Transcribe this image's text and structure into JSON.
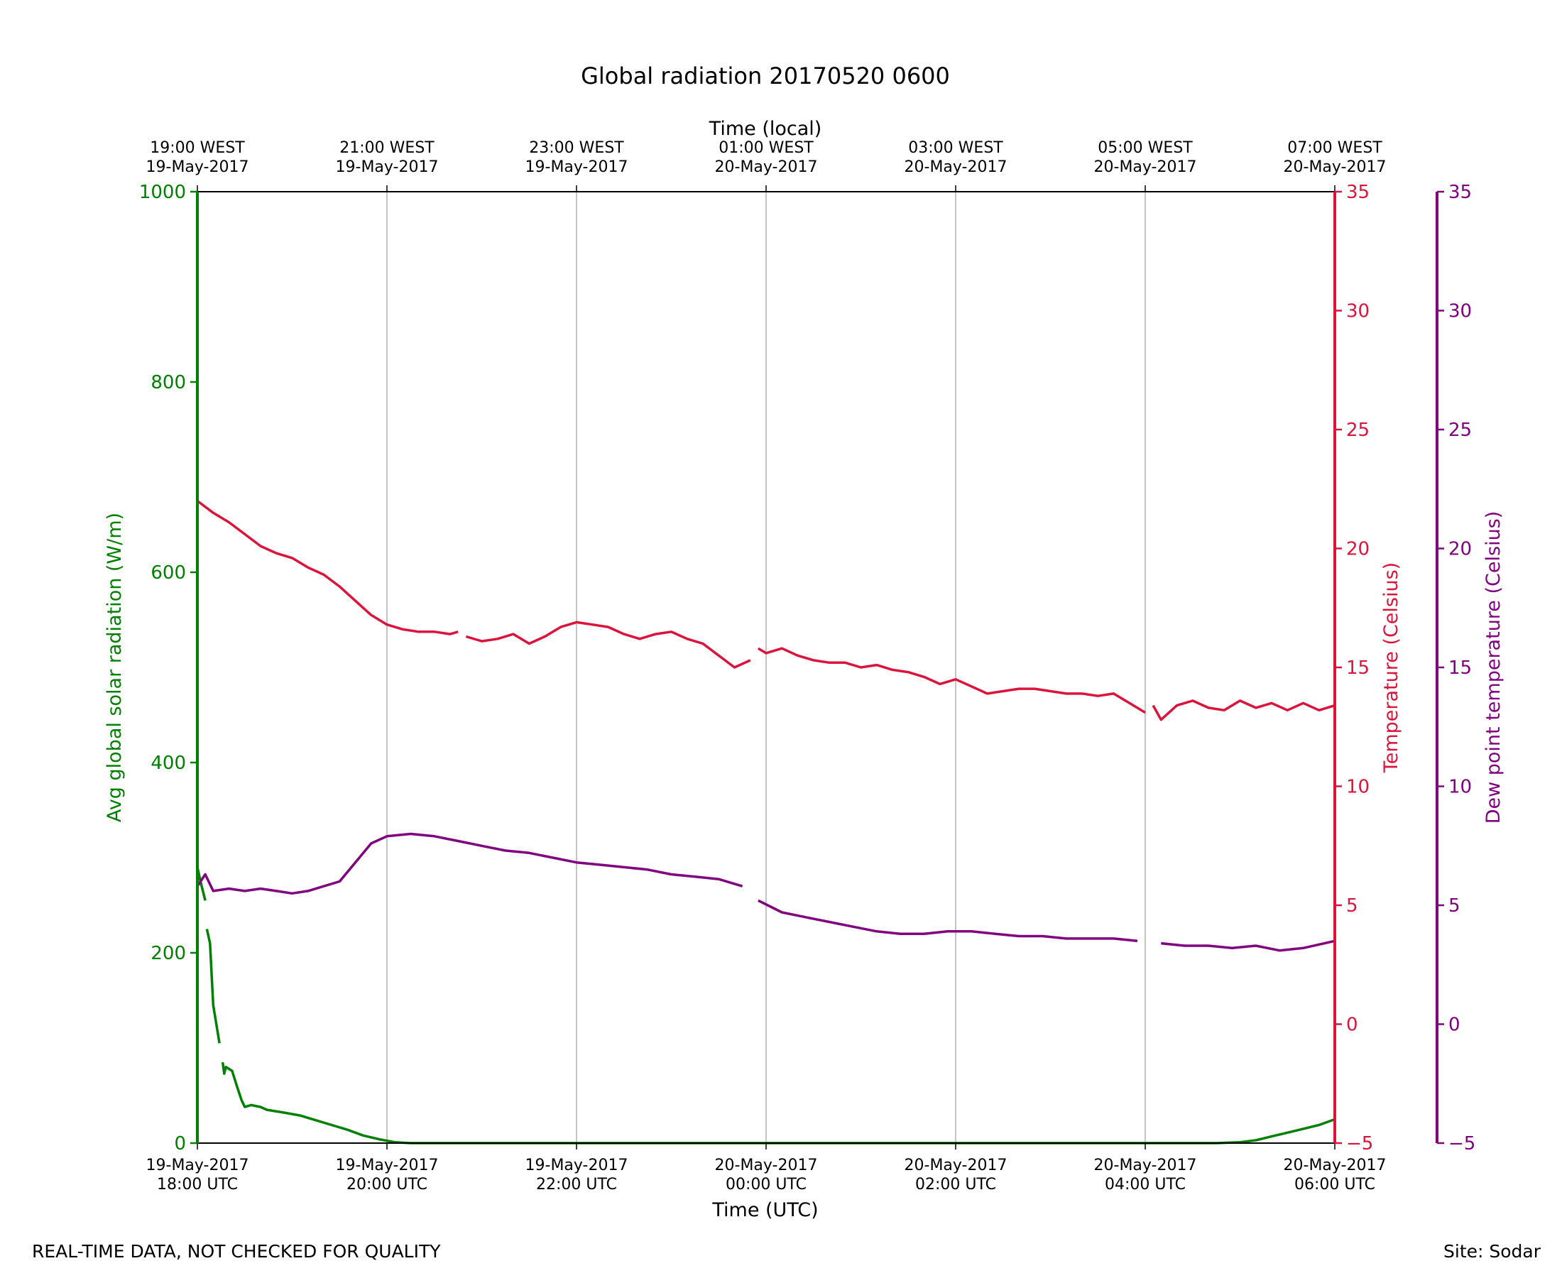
{
  "footer": {
    "note": "REAL-TIME DATA, NOT CHECKED FOR QUALITY",
    "site": "Site: Sodar"
  },
  "colors": {
    "radiation": "#008000",
    "temperature": "#DC143C",
    "dewpoint": "#800080",
    "grid": "#b0b0b0"
  },
  "chart_data": {
    "type": "line",
    "title": "Global radiation 20170520 0600",
    "xlabel": "Time (UTC)",
    "xlabel_top": "Time (local)",
    "grid": "vertical",
    "x_range": [
      "2017-05-19T18:00",
      "2017-05-20T06:00"
    ],
    "x_ticks": [
      {
        "t": "2017-05-19T18:00",
        "bottom": [
          "19-May-2017",
          "18:00 UTC"
        ],
        "top": [
          "19:00 WEST",
          "19-May-2017"
        ]
      },
      {
        "t": "2017-05-19T20:00",
        "bottom": [
          "19-May-2017",
          "20:00 UTC"
        ],
        "top": [
          "21:00 WEST",
          "19-May-2017"
        ]
      },
      {
        "t": "2017-05-19T22:00",
        "bottom": [
          "19-May-2017",
          "22:00 UTC"
        ],
        "top": [
          "23:00 WEST",
          "19-May-2017"
        ]
      },
      {
        "t": "2017-05-20T00:00",
        "bottom": [
          "20-May-2017",
          "00:00 UTC"
        ],
        "top": [
          "01:00 WEST",
          "20-May-2017"
        ]
      },
      {
        "t": "2017-05-20T02:00",
        "bottom": [
          "20-May-2017",
          "02:00 UTC"
        ],
        "top": [
          "03:00 WEST",
          "20-May-2017"
        ]
      },
      {
        "t": "2017-05-20T04:00",
        "bottom": [
          "20-May-2017",
          "04:00 UTC"
        ],
        "top": [
          "05:00 WEST",
          "20-May-2017"
        ]
      },
      {
        "t": "2017-05-20T06:00",
        "bottom": [
          "20-May-2017",
          "06:00 UTC"
        ],
        "top": [
          "07:00 WEST",
          "20-May-2017"
        ]
      }
    ],
    "axes": [
      {
        "id": "radiation",
        "label": "Avg global solar radiation (W/m)",
        "side": "left",
        "ylim": [
          0,
          1000
        ],
        "ticks": [
          0,
          200,
          400,
          600,
          800,
          1000
        ]
      },
      {
        "id": "temperature",
        "label": "Temperature (Celsius)",
        "side": "right",
        "ylim": [
          -5,
          35
        ],
        "ticks": [
          -5,
          0,
          5,
          10,
          15,
          20,
          25,
          30,
          35
        ]
      },
      {
        "id": "dewpoint",
        "label": "Dew point temperature (Celsius)",
        "side": "right-outer",
        "ylim": [
          -5,
          35
        ],
        "ticks": [
          -5,
          0,
          5,
          10,
          15,
          20,
          25,
          30,
          35
        ]
      }
    ],
    "series": [
      {
        "axis": "radiation",
        "style": "solid with gaps",
        "points": [
          [
            "2017-05-19T18:00",
            1000
          ],
          [
            "2017-05-19T18:00",
            290
          ],
          [
            "2017-05-19T18:02",
            275
          ],
          [
            "2017-05-19T18:05",
            255
          ],
          null,
          [
            "2017-05-19T18:06",
            225
          ],
          [
            "2017-05-19T18:08",
            210
          ],
          [
            "2017-05-19T18:10",
            145
          ],
          [
            "2017-05-19T18:12",
            125
          ],
          [
            "2017-05-19T18:14",
            105
          ],
          null,
          [
            "2017-05-19T18:16",
            85
          ],
          [
            "2017-05-19T18:17",
            73
          ],
          [
            "2017-05-19T18:18",
            80
          ],
          [
            "2017-05-19T18:22",
            76
          ],
          [
            "2017-05-19T18:25",
            60
          ],
          [
            "2017-05-19T18:28",
            45
          ],
          [
            "2017-05-19T18:30",
            38
          ],
          [
            "2017-05-19T18:34",
            40
          ],
          [
            "2017-05-19T18:40",
            38
          ],
          [
            "2017-05-19T18:44",
            35
          ],
          [
            "2017-05-19T18:55",
            32
          ],
          [
            "2017-05-19T19:05",
            29
          ],
          [
            "2017-05-19T19:15",
            24
          ],
          [
            "2017-05-19T19:25",
            19
          ],
          [
            "2017-05-19T19:35",
            14
          ],
          [
            "2017-05-19T19:45",
            8
          ],
          [
            "2017-05-19T19:55",
            4
          ],
          [
            "2017-05-19T20:05",
            1
          ],
          [
            "2017-05-19T20:15",
            0
          ],
          [
            "2017-05-20T04:45",
            0
          ],
          [
            "2017-05-20T05:00",
            1
          ],
          [
            "2017-05-20T05:10",
            3
          ],
          [
            "2017-05-20T05:20",
            7
          ],
          [
            "2017-05-20T05:30",
            11
          ],
          [
            "2017-05-20T05:40",
            15
          ],
          [
            "2017-05-20T05:50",
            19
          ],
          [
            "2017-05-20T06:00",
            25
          ]
        ]
      },
      {
        "axis": "temperature",
        "style": "jagged with gaps",
        "points": [
          [
            "2017-05-19T18:00",
            22
          ],
          [
            "2017-05-19T18:10",
            21.5
          ],
          [
            "2017-05-19T18:20",
            21.1
          ],
          [
            "2017-05-19T18:30",
            20.6
          ],
          [
            "2017-05-19T18:40",
            20.1
          ],
          [
            "2017-05-19T18:50",
            19.8
          ],
          [
            "2017-05-19T19:00",
            19.6
          ],
          [
            "2017-05-19T19:10",
            19.2
          ],
          [
            "2017-05-19T19:20",
            18.9
          ],
          [
            "2017-05-19T19:30",
            18.4
          ],
          [
            "2017-05-19T19:40",
            17.8
          ],
          [
            "2017-05-19T19:50",
            17.2
          ],
          [
            "2017-05-19T20:00",
            16.8
          ],
          [
            "2017-05-19T20:10",
            16.6
          ],
          [
            "2017-05-19T20:20",
            16.5
          ],
          [
            "2017-05-19T20:30",
            16.5
          ],
          [
            "2017-05-19T20:40",
            16.4
          ],
          [
            "2017-05-19T20:45",
            16.5
          ],
          null,
          [
            "2017-05-19T20:50",
            16.3
          ],
          [
            "2017-05-19T21:00",
            16.1
          ],
          [
            "2017-05-19T21:10",
            16.2
          ],
          [
            "2017-05-19T21:20",
            16.4
          ],
          [
            "2017-05-19T21:30",
            16.0
          ],
          [
            "2017-05-19T21:40",
            16.3
          ],
          [
            "2017-05-19T21:50",
            16.7
          ],
          [
            "2017-05-19T22:00",
            16.9
          ],
          [
            "2017-05-19T22:10",
            16.8
          ],
          [
            "2017-05-19T22:20",
            16.7
          ],
          [
            "2017-05-19T22:30",
            16.4
          ],
          [
            "2017-05-19T22:40",
            16.2
          ],
          [
            "2017-05-19T22:50",
            16.4
          ],
          [
            "2017-05-19T23:00",
            16.5
          ],
          [
            "2017-05-19T23:10",
            16.2
          ],
          [
            "2017-05-19T23:20",
            16.0
          ],
          [
            "2017-05-19T23:30",
            15.5
          ],
          [
            "2017-05-19T23:40",
            15.0
          ],
          [
            "2017-05-19T23:50",
            15.3
          ],
          null,
          [
            "2017-05-19T23:55",
            15.8
          ],
          [
            "2017-05-20T00:00",
            15.6
          ],
          [
            "2017-05-20T00:10",
            15.8
          ],
          [
            "2017-05-20T00:20",
            15.5
          ],
          [
            "2017-05-20T00:30",
            15.3
          ],
          [
            "2017-05-20T00:40",
            15.2
          ],
          [
            "2017-05-20T00:50",
            15.2
          ],
          [
            "2017-05-20T01:00",
            15.0
          ],
          [
            "2017-05-20T01:10",
            15.1
          ],
          [
            "2017-05-20T01:20",
            14.9
          ],
          [
            "2017-05-20T01:30",
            14.8
          ],
          [
            "2017-05-20T01:40",
            14.6
          ],
          [
            "2017-05-20T01:50",
            14.3
          ],
          [
            "2017-05-20T02:00",
            14.5
          ],
          [
            "2017-05-20T02:10",
            14.2
          ],
          [
            "2017-05-20T02:20",
            13.9
          ],
          [
            "2017-05-20T02:30",
            14.0
          ],
          [
            "2017-05-20T02:40",
            14.1
          ],
          [
            "2017-05-20T02:50",
            14.1
          ],
          [
            "2017-05-20T03:00",
            14.0
          ],
          [
            "2017-05-20T03:10",
            13.9
          ],
          [
            "2017-05-20T03:20",
            13.9
          ],
          [
            "2017-05-20T03:30",
            13.8
          ],
          [
            "2017-05-20T03:40",
            13.9
          ],
          [
            "2017-05-20T03:50",
            13.5
          ],
          [
            "2017-05-20T04:00",
            13.1
          ],
          null,
          [
            "2017-05-20T04:05",
            13.4
          ],
          [
            "2017-05-20T04:10",
            12.8
          ],
          [
            "2017-05-20T04:20",
            13.4
          ],
          [
            "2017-05-20T04:30",
            13.6
          ],
          [
            "2017-05-20T04:40",
            13.3
          ],
          [
            "2017-05-20T04:50",
            13.2
          ],
          [
            "2017-05-20T05:00",
            13.6
          ],
          [
            "2017-05-20T05:10",
            13.3
          ],
          [
            "2017-05-20T05:20",
            13.5
          ],
          [
            "2017-05-20T05:30",
            13.2
          ],
          [
            "2017-05-20T05:40",
            13.5
          ],
          [
            "2017-05-20T05:50",
            13.2
          ],
          [
            "2017-05-20T06:00",
            13.4
          ]
        ]
      },
      {
        "axis": "dewpoint",
        "style": "noisy with gaps",
        "points": [
          [
            "2017-05-19T18:00",
            5.8
          ],
          [
            "2017-05-19T18:05",
            6.3
          ],
          [
            "2017-05-19T18:10",
            5.6
          ],
          [
            "2017-05-19T18:20",
            5.7
          ],
          [
            "2017-05-19T18:30",
            5.6
          ],
          [
            "2017-05-19T18:40",
            5.7
          ],
          [
            "2017-05-19T18:50",
            5.6
          ],
          [
            "2017-05-19T19:00",
            5.5
          ],
          [
            "2017-05-19T19:10",
            5.6
          ],
          [
            "2017-05-19T19:20",
            5.8
          ],
          [
            "2017-05-19T19:30",
            6.0
          ],
          [
            "2017-05-19T19:40",
            6.8
          ],
          [
            "2017-05-19T19:50",
            7.6
          ],
          [
            "2017-05-19T20:00",
            7.9
          ],
          [
            "2017-05-19T20:15",
            8.0
          ],
          [
            "2017-05-19T20:30",
            7.9
          ],
          [
            "2017-05-19T20:45",
            7.7
          ],
          [
            "2017-05-19T21:00",
            7.5
          ],
          [
            "2017-05-19T21:15",
            7.3
          ],
          [
            "2017-05-19T21:30",
            7.2
          ],
          [
            "2017-05-19T21:45",
            7.0
          ],
          [
            "2017-05-19T22:00",
            6.8
          ],
          [
            "2017-05-19T22:15",
            6.7
          ],
          [
            "2017-05-19T22:30",
            6.6
          ],
          [
            "2017-05-19T22:45",
            6.5
          ],
          [
            "2017-05-19T23:00",
            6.3
          ],
          [
            "2017-05-19T23:15",
            6.2
          ],
          [
            "2017-05-19T23:30",
            6.1
          ],
          [
            "2017-05-19T23:45",
            5.8
          ],
          null,
          [
            "2017-05-19T23:55",
            5.2
          ],
          [
            "2017-05-20T00:10",
            4.7
          ],
          [
            "2017-05-20T00:25",
            4.5
          ],
          [
            "2017-05-20T00:40",
            4.3
          ],
          [
            "2017-05-20T00:55",
            4.1
          ],
          [
            "2017-05-20T01:10",
            3.9
          ],
          [
            "2017-05-20T01:25",
            3.8
          ],
          [
            "2017-05-20T01:40",
            3.8
          ],
          [
            "2017-05-20T01:55",
            3.9
          ],
          [
            "2017-05-20T02:10",
            3.9
          ],
          [
            "2017-05-20T02:25",
            3.8
          ],
          [
            "2017-05-20T02:40",
            3.7
          ],
          [
            "2017-05-20T02:55",
            3.7
          ],
          [
            "2017-05-20T03:10",
            3.6
          ],
          [
            "2017-05-20T03:25",
            3.6
          ],
          [
            "2017-05-20T03:40",
            3.6
          ],
          [
            "2017-05-20T03:55",
            3.5
          ],
          null,
          [
            "2017-05-20T04:10",
            3.4
          ],
          [
            "2017-05-20T04:25",
            3.3
          ],
          [
            "2017-05-20T04:40",
            3.3
          ],
          [
            "2017-05-20T04:55",
            3.2
          ],
          [
            "2017-05-20T05:10",
            3.3
          ],
          [
            "2017-05-20T05:25",
            3.1
          ],
          [
            "2017-05-20T05:40",
            3.2
          ],
          [
            "2017-05-20T06:00",
            3.5
          ]
        ]
      }
    ]
  }
}
